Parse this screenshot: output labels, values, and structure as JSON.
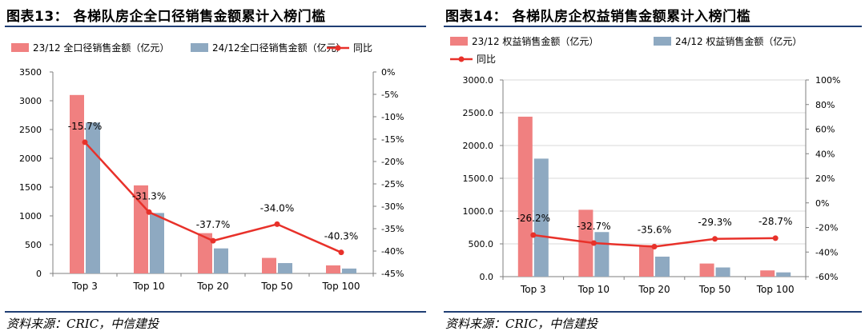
{
  "source_note": "资料来源：CRIC，中信建投",
  "chart_data": [
    {
      "type": "bar",
      "title": "图表13：  各梯队房企全口径销售金额累计入榜门槛",
      "categories": [
        "Top 3",
        "Top 10",
        "Top 20",
        "Top 50",
        "Top 100"
      ],
      "series": [
        {
          "name": "23/12 全口径销售金额（亿元）",
          "type": "bar",
          "axis": "left",
          "color": "#f08080",
          "values": [
            3100,
            1530,
            700,
            270,
            140
          ]
        },
        {
          "name": "24/12全口径销售金额（亿元）",
          "type": "bar",
          "axis": "left",
          "color": "#8ea9c1",
          "values": [
            2620,
            1050,
            435,
            180,
            85
          ]
        },
        {
          "name": "同比",
          "type": "line",
          "axis": "right",
          "color": "#e8312a",
          "values": [
            -15.7,
            -31.3,
            -37.7,
            -34.0,
            -40.3
          ],
          "labels": [
            "-15.7%",
            "-31.3%",
            "-37.7%",
            "-34.0%",
            "-40.3%"
          ]
        }
      ],
      "y_left": {
        "min": 0,
        "max": 3500,
        "step": 500,
        "ticks": [
          "0",
          "500",
          "1000",
          "1500",
          "2000",
          "2500",
          "3000",
          "3500"
        ]
      },
      "y_right": {
        "min": -45,
        "max": 0,
        "step": 5,
        "ticks": [
          "-45%",
          "-40%",
          "-35%",
          "-30%",
          "-25%",
          "-20%",
          "-15%",
          "-10%",
          "-5%",
          "0%"
        ]
      },
      "grid": false,
      "legend": "top"
    },
    {
      "type": "bar",
      "title": "图表14：  各梯队房企权益销售金额累计入榜门槛",
      "categories": [
        "Top 3",
        "Top 10",
        "Top 20",
        "Top 50",
        "Top 100"
      ],
      "series": [
        {
          "name": "23/12 权益销售金额（亿元）",
          "type": "bar",
          "axis": "left",
          "color": "#f08080",
          "values": [
            2440,
            1020,
            480,
            200,
            95
          ]
        },
        {
          "name": "24/12 权益销售金额（亿元）",
          "type": "bar",
          "axis": "left",
          "color": "#8ea9c1",
          "values": [
            1800,
            680,
            305,
            140,
            65
          ]
        },
        {
          "name": "同比",
          "type": "line",
          "axis": "right",
          "color": "#e8312a",
          "values": [
            -26.2,
            -32.7,
            -35.6,
            -29.3,
            -28.7
          ],
          "labels": [
            "-26.2%",
            "-32.7%",
            "-35.6%",
            "-29.3%",
            "-28.7%"
          ]
        }
      ],
      "y_left": {
        "min": 0,
        "max": 3000,
        "step": 500,
        "ticks": [
          "0.0",
          "500.0",
          "1000.0",
          "1500.0",
          "2000.0",
          "2500.0",
          "3000.0"
        ]
      },
      "y_right": {
        "min": -60,
        "max": 100,
        "step": 20,
        "ticks": [
          "-60%",
          "-40%",
          "-20%",
          "0%",
          "20%",
          "40%",
          "60%",
          "80%",
          "100%"
        ]
      },
      "grid": "horizontal",
      "legend": "top"
    }
  ]
}
